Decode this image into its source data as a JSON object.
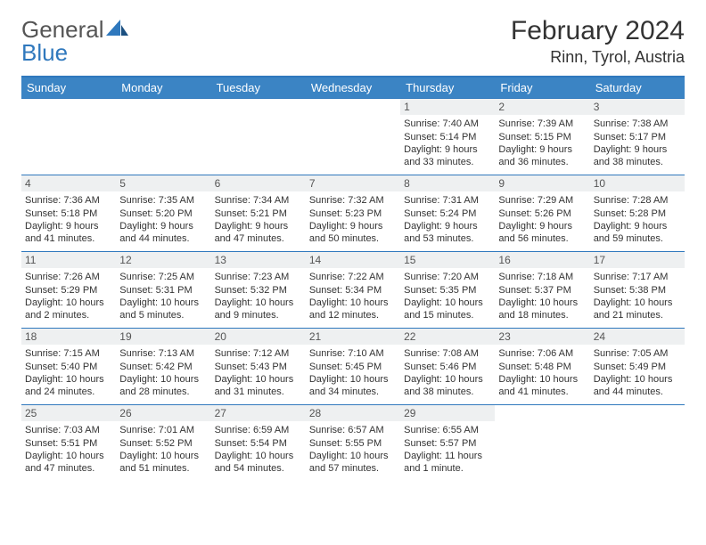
{
  "logo": {
    "text1": "General",
    "text2": "Blue"
  },
  "title": "February 2024",
  "location": "Rinn, Tyrol, Austria",
  "colors": {
    "header_bg": "#3b84c4",
    "header_text": "#ffffff",
    "border": "#2f78bd",
    "daynum_bg": "#eef0f1",
    "body_text": "#333333",
    "logo_gray": "#555555",
    "logo_blue": "#2f78bd"
  },
  "weekdays": [
    "Sunday",
    "Monday",
    "Tuesday",
    "Wednesday",
    "Thursday",
    "Friday",
    "Saturday"
  ],
  "weeks": [
    [
      {
        "n": "",
        "sr": "",
        "ss": "",
        "dl": ""
      },
      {
        "n": "",
        "sr": "",
        "ss": "",
        "dl": ""
      },
      {
        "n": "",
        "sr": "",
        "ss": "",
        "dl": ""
      },
      {
        "n": "",
        "sr": "",
        "ss": "",
        "dl": ""
      },
      {
        "n": "1",
        "sr": "Sunrise: 7:40 AM",
        "ss": "Sunset: 5:14 PM",
        "dl": "Daylight: 9 hours and 33 minutes."
      },
      {
        "n": "2",
        "sr": "Sunrise: 7:39 AM",
        "ss": "Sunset: 5:15 PM",
        "dl": "Daylight: 9 hours and 36 minutes."
      },
      {
        "n": "3",
        "sr": "Sunrise: 7:38 AM",
        "ss": "Sunset: 5:17 PM",
        "dl": "Daylight: 9 hours and 38 minutes."
      }
    ],
    [
      {
        "n": "4",
        "sr": "Sunrise: 7:36 AM",
        "ss": "Sunset: 5:18 PM",
        "dl": "Daylight: 9 hours and 41 minutes."
      },
      {
        "n": "5",
        "sr": "Sunrise: 7:35 AM",
        "ss": "Sunset: 5:20 PM",
        "dl": "Daylight: 9 hours and 44 minutes."
      },
      {
        "n": "6",
        "sr": "Sunrise: 7:34 AM",
        "ss": "Sunset: 5:21 PM",
        "dl": "Daylight: 9 hours and 47 minutes."
      },
      {
        "n": "7",
        "sr": "Sunrise: 7:32 AM",
        "ss": "Sunset: 5:23 PM",
        "dl": "Daylight: 9 hours and 50 minutes."
      },
      {
        "n": "8",
        "sr": "Sunrise: 7:31 AM",
        "ss": "Sunset: 5:24 PM",
        "dl": "Daylight: 9 hours and 53 minutes."
      },
      {
        "n": "9",
        "sr": "Sunrise: 7:29 AM",
        "ss": "Sunset: 5:26 PM",
        "dl": "Daylight: 9 hours and 56 minutes."
      },
      {
        "n": "10",
        "sr": "Sunrise: 7:28 AM",
        "ss": "Sunset: 5:28 PM",
        "dl": "Daylight: 9 hours and 59 minutes."
      }
    ],
    [
      {
        "n": "11",
        "sr": "Sunrise: 7:26 AM",
        "ss": "Sunset: 5:29 PM",
        "dl": "Daylight: 10 hours and 2 minutes."
      },
      {
        "n": "12",
        "sr": "Sunrise: 7:25 AM",
        "ss": "Sunset: 5:31 PM",
        "dl": "Daylight: 10 hours and 5 minutes."
      },
      {
        "n": "13",
        "sr": "Sunrise: 7:23 AM",
        "ss": "Sunset: 5:32 PM",
        "dl": "Daylight: 10 hours and 9 minutes."
      },
      {
        "n": "14",
        "sr": "Sunrise: 7:22 AM",
        "ss": "Sunset: 5:34 PM",
        "dl": "Daylight: 10 hours and 12 minutes."
      },
      {
        "n": "15",
        "sr": "Sunrise: 7:20 AM",
        "ss": "Sunset: 5:35 PM",
        "dl": "Daylight: 10 hours and 15 minutes."
      },
      {
        "n": "16",
        "sr": "Sunrise: 7:18 AM",
        "ss": "Sunset: 5:37 PM",
        "dl": "Daylight: 10 hours and 18 minutes."
      },
      {
        "n": "17",
        "sr": "Sunrise: 7:17 AM",
        "ss": "Sunset: 5:38 PM",
        "dl": "Daylight: 10 hours and 21 minutes."
      }
    ],
    [
      {
        "n": "18",
        "sr": "Sunrise: 7:15 AM",
        "ss": "Sunset: 5:40 PM",
        "dl": "Daylight: 10 hours and 24 minutes."
      },
      {
        "n": "19",
        "sr": "Sunrise: 7:13 AM",
        "ss": "Sunset: 5:42 PM",
        "dl": "Daylight: 10 hours and 28 minutes."
      },
      {
        "n": "20",
        "sr": "Sunrise: 7:12 AM",
        "ss": "Sunset: 5:43 PM",
        "dl": "Daylight: 10 hours and 31 minutes."
      },
      {
        "n": "21",
        "sr": "Sunrise: 7:10 AM",
        "ss": "Sunset: 5:45 PM",
        "dl": "Daylight: 10 hours and 34 minutes."
      },
      {
        "n": "22",
        "sr": "Sunrise: 7:08 AM",
        "ss": "Sunset: 5:46 PM",
        "dl": "Daylight: 10 hours and 38 minutes."
      },
      {
        "n": "23",
        "sr": "Sunrise: 7:06 AM",
        "ss": "Sunset: 5:48 PM",
        "dl": "Daylight: 10 hours and 41 minutes."
      },
      {
        "n": "24",
        "sr": "Sunrise: 7:05 AM",
        "ss": "Sunset: 5:49 PM",
        "dl": "Daylight: 10 hours and 44 minutes."
      }
    ],
    [
      {
        "n": "25",
        "sr": "Sunrise: 7:03 AM",
        "ss": "Sunset: 5:51 PM",
        "dl": "Daylight: 10 hours and 47 minutes."
      },
      {
        "n": "26",
        "sr": "Sunrise: 7:01 AM",
        "ss": "Sunset: 5:52 PM",
        "dl": "Daylight: 10 hours and 51 minutes."
      },
      {
        "n": "27",
        "sr": "Sunrise: 6:59 AM",
        "ss": "Sunset: 5:54 PM",
        "dl": "Daylight: 10 hours and 54 minutes."
      },
      {
        "n": "28",
        "sr": "Sunrise: 6:57 AM",
        "ss": "Sunset: 5:55 PM",
        "dl": "Daylight: 10 hours and 57 minutes."
      },
      {
        "n": "29",
        "sr": "Sunrise: 6:55 AM",
        "ss": "Sunset: 5:57 PM",
        "dl": "Daylight: 11 hours and 1 minute."
      },
      {
        "n": "",
        "sr": "",
        "ss": "",
        "dl": ""
      },
      {
        "n": "",
        "sr": "",
        "ss": "",
        "dl": ""
      }
    ]
  ]
}
